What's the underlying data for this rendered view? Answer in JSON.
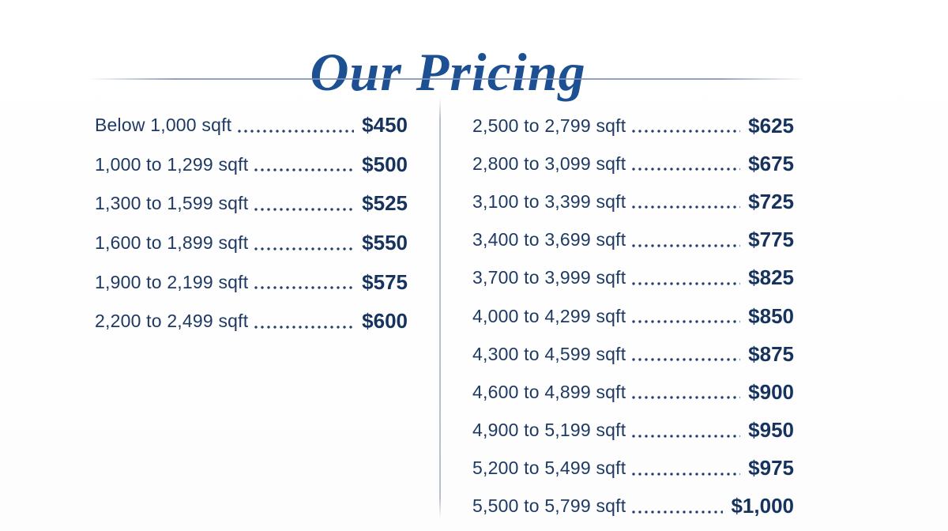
{
  "title": "Our Pricing",
  "colors": {
    "title_blue": "#1c5093",
    "label_navy": "#1e3a64",
    "price_navy": "#16335e",
    "divider_gray": "#a8afc1",
    "rule_gray": "#7d91b9"
  },
  "pricing": {
    "left_column": [
      {
        "label": "Below 1,000 sqft",
        "price": "$450"
      },
      {
        "label": "1,000 to 1,299 sqft",
        "price": "$500"
      },
      {
        "label": "1,300 to 1,599 sqft",
        "price": "$525"
      },
      {
        "label": "1,600 to 1,899 sqft",
        "price": "$550"
      },
      {
        "label": "1,900 to 2,199 sqft",
        "price": "$575"
      },
      {
        "label": "2,200 to 2,499 sqft",
        "price": "$600"
      }
    ],
    "right_column": [
      {
        "label": "2,500 to 2,799 sqft",
        "price": "$625"
      },
      {
        "label": "2,800 to 3,099 sqft",
        "price": "$675"
      },
      {
        "label": "3,100 to 3,399 sqft",
        "price": "$725"
      },
      {
        "label": "3,400 to 3,699 sqft",
        "price": "$775"
      },
      {
        "label": "3,700 to 3,999 sqft",
        "price": "$825"
      },
      {
        "label": "4,000 to 4,299 sqft",
        "price": "$850"
      },
      {
        "label": "4,300 to 4,599 sqft",
        "price": "$875"
      },
      {
        "label": "4,600 to 4,899 sqft",
        "price": "$900"
      },
      {
        "label": "4,900 to 5,199 sqft",
        "price": "$950"
      },
      {
        "label": "5,200 to 5,499 sqft",
        "price": "$975"
      },
      {
        "label": "5,500 to 5,799 sqft",
        "price": "$1,000"
      }
    ]
  }
}
